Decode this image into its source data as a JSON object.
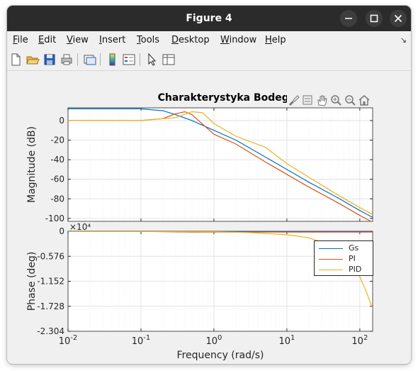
{
  "window": {
    "title": "Figure 4"
  },
  "menu": {
    "items": [
      {
        "label": "File",
        "key": "F",
        "rest": "ile"
      },
      {
        "label": "Edit",
        "key": "E",
        "rest": "dit"
      },
      {
        "label": "View",
        "key": "V",
        "rest": "iew"
      },
      {
        "label": "Insert",
        "key": "I",
        "rest": "nsert"
      },
      {
        "label": "Tools",
        "key": "T",
        "rest": "ools"
      },
      {
        "label": "Desktop",
        "key": "D",
        "rest": "esktop"
      },
      {
        "label": "Window",
        "key": "W",
        "rest": "indow"
      },
      {
        "label": "Help",
        "key": "H",
        "rest": "elp"
      }
    ],
    "overflow_icon": "arrow-icon"
  },
  "toolbar": {
    "icons": [
      "new-figure-icon",
      "open-file-icon",
      "save-icon",
      "print-icon",
      "link-plot-icon",
      "colorbar-icon",
      "legend-icon",
      "pointer-icon",
      "property-inspector-icon"
    ]
  },
  "axes_toolbar": {
    "icons": [
      "brush-icon",
      "data-tips-icon",
      "pan-icon",
      "zoom-in-icon",
      "zoom-out-icon",
      "home-icon"
    ]
  },
  "colors": {
    "Gs": "#0072bd",
    "PI": "#d95319",
    "PID": "#edb120",
    "axis": "#262626",
    "grid": "#dcdcdc"
  },
  "chart_data": {
    "type": "line",
    "title": "Charakterystyka Bodego",
    "xlabel": "Frequency  (rad/s)",
    "x_scale": "log",
    "xlim": [
      0.01,
      150
    ],
    "x_ticks": [
      {
        "base": "10",
        "exp": "-2",
        "value": 0.01
      },
      {
        "base": "10",
        "exp": "-1",
        "value": 0.1
      },
      {
        "base": "10",
        "exp": "0",
        "value": 1
      },
      {
        "base": "10",
        "exp": "1",
        "value": 10
      },
      {
        "base": "10",
        "exp": "2",
        "value": 100
      }
    ],
    "grid": true,
    "magnitude": {
      "ylabel": "Magnitude (dB)",
      "ylim": [
        -103,
        13
      ],
      "y_ticks": [
        {
          "label": "0",
          "value": 0
        },
        {
          "label": "-20",
          "value": -20
        },
        {
          "label": "-40",
          "value": -40
        },
        {
          "label": "-60",
          "value": -60
        },
        {
          "label": "-80",
          "value": -80
        },
        {
          "label": "-100",
          "value": -100
        }
      ],
      "series": [
        {
          "name": "Gs",
          "x": [
            0.01,
            0.1,
            0.2,
            0.3,
            0.5,
            1,
            2,
            5,
            10,
            20,
            50,
            100,
            150
          ],
          "y": [
            12,
            12,
            10,
            6,
            0,
            -10,
            -20,
            -37,
            -50,
            -63,
            -79,
            -92,
            -99
          ]
        },
        {
          "name": "PI",
          "x": [
            0.01,
            0.1,
            0.2,
            0.3,
            0.4,
            0.5,
            1,
            2,
            5,
            10,
            20,
            50,
            100,
            150
          ],
          "y": [
            0,
            0,
            2,
            7,
            9,
            6,
            -14,
            -24,
            -42,
            -55,
            -68,
            -84,
            -97,
            -104
          ]
        },
        {
          "name": "PID",
          "x": [
            0.01,
            0.1,
            0.3,
            0.5,
            0.7,
            1,
            2,
            3,
            5,
            10,
            20,
            50,
            100,
            150
          ],
          "y": [
            0,
            0,
            3,
            9,
            8,
            -3,
            -16,
            -21,
            -27,
            -44,
            -58,
            -76,
            -89,
            -96
          ]
        }
      ]
    },
    "phase": {
      "ylabel": "Phase (deg)",
      "exponent_label": "×10⁴",
      "ylim": [
        -2.304,
        0
      ],
      "y_ticks": [
        {
          "label": "0",
          "value": 0
        },
        {
          "label": "-0.576",
          "value": -0.576
        },
        {
          "label": "-1.152",
          "value": -1.152
        },
        {
          "label": "-1.728",
          "value": -1.728
        },
        {
          "label": "-2.304",
          "value": -2.304
        }
      ],
      "series": [
        {
          "name": "Gs",
          "x": [
            0.01,
            0.1,
            0.2,
            0.5,
            1,
            5,
            10,
            150
          ],
          "y": [
            0,
            0,
            0,
            -0.01,
            -0.01,
            -0.01,
            -0.01,
            -0.01
          ]
        },
        {
          "name": "PI",
          "x": [
            0.01,
            0.1,
            0.2,
            0.5,
            1,
            5,
            10,
            150
          ],
          "y": [
            0,
            0,
            -0.01,
            -0.02,
            -0.02,
            -0.02,
            -0.02,
            -0.02
          ]
        },
        {
          "name": "PID",
          "x": [
            0.01,
            1,
            3,
            10,
            20,
            40,
            60,
            80,
            100,
            120,
            150
          ],
          "y": [
            0,
            -0.01,
            -0.03,
            -0.08,
            -0.15,
            -0.32,
            -0.52,
            -0.78,
            -1.05,
            -1.35,
            -1.78
          ]
        }
      ]
    },
    "legend": {
      "placement": "inside phase plot, top-right",
      "entries": [
        "Gs",
        "PI",
        "PID"
      ]
    }
  }
}
